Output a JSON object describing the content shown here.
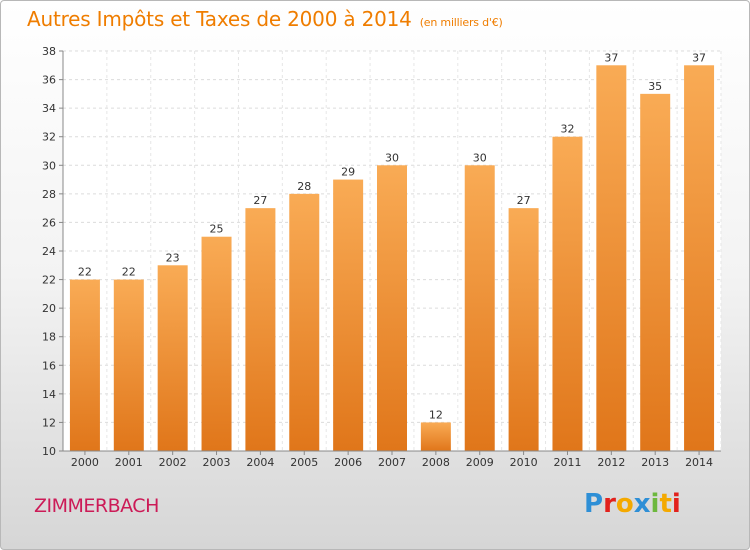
{
  "header": {
    "title": "Autres Impôts et Taxes de 2000 à 2014",
    "unit": "(en milliers d'€)"
  },
  "footer": {
    "town": "ZIMMERBACH",
    "brand": "Proxiti"
  },
  "colors": {
    "title": "#ef7d00",
    "town": "#cc1b57",
    "bar_light": "#f8a850",
    "bar_dark": "#e07a1e"
  },
  "chart_data": {
    "type": "bar",
    "title": "Autres Impôts et Taxes de 2000 à 2014",
    "subtitle": "(en milliers d'€)",
    "xlabel": "",
    "ylabel": "",
    "categories": [
      "2000",
      "2001",
      "2002",
      "2003",
      "2004",
      "2005",
      "2006",
      "2007",
      "2008",
      "2009",
      "2010",
      "2011",
      "2012",
      "2013",
      "2014"
    ],
    "values": [
      22,
      22,
      23,
      25,
      27,
      28,
      29,
      30,
      12,
      30,
      27,
      32,
      37,
      35,
      37
    ],
    "ylim": [
      10,
      38
    ],
    "yticks": [
      10,
      12,
      14,
      16,
      18,
      20,
      22,
      24,
      26,
      28,
      30,
      32,
      34,
      36,
      38
    ],
    "grid": true,
    "data_labels": true
  }
}
